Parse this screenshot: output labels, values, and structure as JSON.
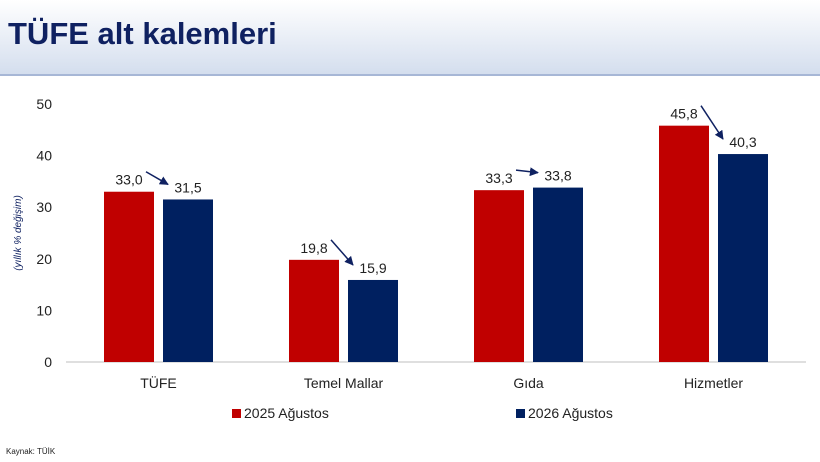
{
  "page": {
    "title": "TÜFE alt kalemleri",
    "source": "Kaynak: TÜİK"
  },
  "colors": {
    "series1": "#c00000",
    "series2": "#002060",
    "title": "#0f2161"
  },
  "chart_data": {
    "type": "bar",
    "title": "",
    "ylabel": "(yıllık % değişim)",
    "xlabel": "",
    "ylim": [
      0,
      50
    ],
    "yticks": [
      0,
      10,
      20,
      30,
      40,
      50
    ],
    "categories": [
      "TÜFE",
      "Temel Mallar",
      "Gıda",
      "Hizmetler"
    ],
    "series": [
      {
        "name": "2025 Ağustos",
        "values": [
          33.0,
          19.8,
          33.3,
          45.8
        ],
        "labels": [
          "33,0",
          "19,8",
          "33,3",
          "45,8"
        ],
        "color": "#c00000"
      },
      {
        "name": "2026 Ağustos",
        "values": [
          31.5,
          15.9,
          33.8,
          40.3
        ],
        "labels": [
          "31,5",
          "15,9",
          "33,8",
          "40,3"
        ],
        "color": "#002060"
      }
    ],
    "grid": false,
    "legend": "bottom",
    "annotations": "arrows from 2025 value label to 2026 value label"
  }
}
